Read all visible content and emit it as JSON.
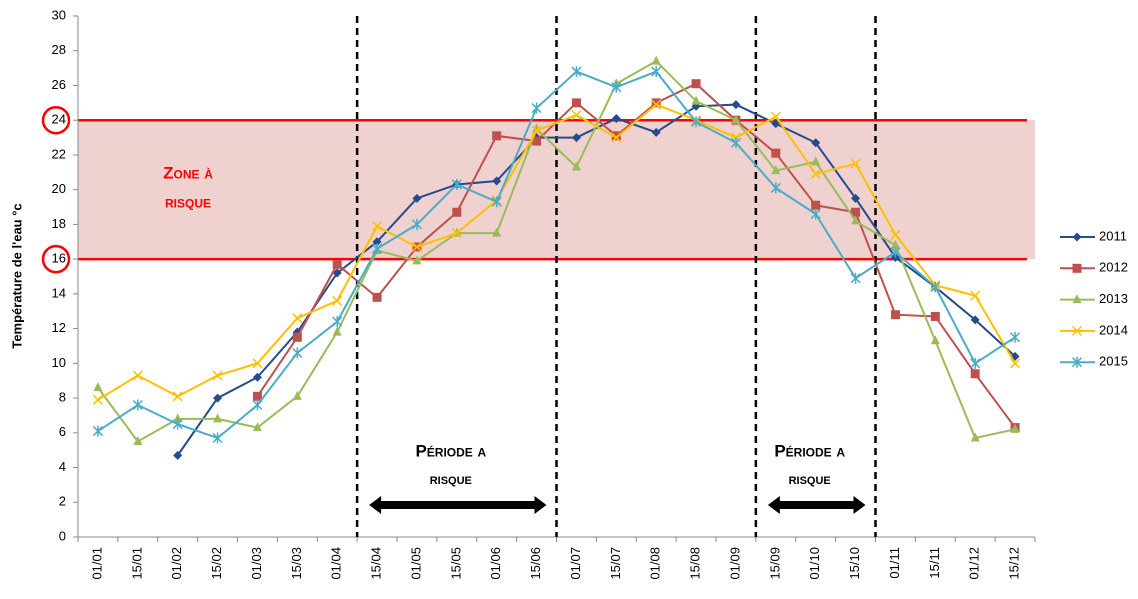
{
  "chart_data": {
    "type": "line",
    "y_label": "Température de l'eau °c",
    "categories": [
      "01/01",
      "15/01",
      "01/02",
      "15/02",
      "01/03",
      "15/03",
      "01/04",
      "15/04",
      "01/05",
      "15/05",
      "01/06",
      "15/06",
      "01/07",
      "15/07",
      "01/08",
      "15/08",
      "01/09",
      "15/09",
      "01/10",
      "15/10",
      "01/11",
      "15/11",
      "01/12",
      "15/12"
    ],
    "series": [
      {
        "name": "2011",
        "color": "#264b8c",
        "marker": "diamond",
        "values": [
          null,
          null,
          4.7,
          8.0,
          9.2,
          11.8,
          15.2,
          17.0,
          19.5,
          20.3,
          20.5,
          23.0,
          23.0,
          24.1,
          23.3,
          24.8,
          24.9,
          23.8,
          22.7,
          19.5,
          16.1,
          14.4,
          12.5,
          10.4
        ]
      },
      {
        "name": "2012",
        "color": "#c0504d",
        "marker": "square",
        "values": [
          null,
          null,
          null,
          null,
          8.1,
          11.5,
          15.7,
          13.8,
          16.7,
          18.7,
          23.1,
          22.8,
          25.0,
          23.1,
          25.0,
          26.1,
          24.0,
          22.1,
          19.1,
          18.7,
          12.8,
          12.7,
          9.4,
          6.3
        ]
      },
      {
        "name": "2013",
        "color": "#9bbb59",
        "marker": "triangle",
        "values": [
          8.6,
          5.5,
          6.8,
          6.8,
          6.3,
          8.1,
          11.8,
          16.5,
          15.9,
          17.5,
          17.5,
          23.5,
          21.3,
          26.1,
          27.4,
          25.1,
          24.0,
          21.1,
          21.6,
          18.2,
          16.8,
          11.3,
          5.7,
          6.2
        ]
      },
      {
        "name": "2014",
        "color": "#ffc000",
        "marker": "x",
        "values": [
          7.9,
          9.3,
          8.1,
          9.3,
          10.0,
          12.6,
          13.6,
          17.9,
          16.7,
          17.5,
          19.4,
          23.4,
          24.3,
          23.0,
          24.9,
          24.0,
          23.0,
          24.2,
          20.9,
          21.5,
          17.4,
          14.5,
          13.9,
          10.0
        ]
      },
      {
        "name": "2015",
        "color": "#4bacc6",
        "marker": "asterisk",
        "values": [
          6.1,
          7.6,
          6.5,
          5.7,
          7.6,
          10.6,
          12.4,
          16.6,
          18.0,
          20.3,
          19.3,
          24.7,
          26.8,
          25.9,
          26.8,
          23.9,
          22.7,
          20.1,
          18.6,
          14.9,
          16.4,
          14.4,
          10.0,
          11.5
        ]
      }
    ],
    "ylim": [
      0,
      30
    ],
    "yticks": [
      0,
      2,
      4,
      6,
      8,
      10,
      12,
      14,
      16,
      18,
      20,
      22,
      24,
      26,
      28,
      30
    ],
    "grid": false,
    "legend": "right",
    "zone": [
      16,
      24
    ],
    "zone_color": "#e6b8b7",
    "zone_line_color": "#ff0000",
    "zone_label": [
      "Zone à",
      "risque"
    ],
    "periods": [
      {
        "label": [
          "Période a",
          "risque"
        ],
        "from": "15/04",
        "to": "15/06"
      },
      {
        "label": [
          "Période a",
          "risque"
        ],
        "from": "15/09",
        "to": "15/10"
      }
    ]
  }
}
